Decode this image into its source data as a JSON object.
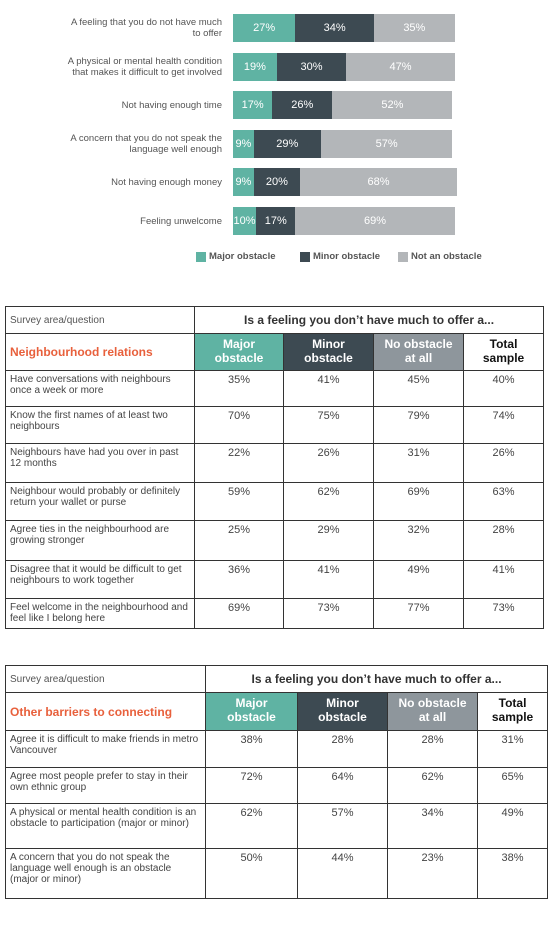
{
  "chart_data": {
    "type": "bar",
    "orientation": "horizontal",
    "stacked": true,
    "categories": [
      "A feeling that you do not have much to offer",
      "A physical or mental health condition that makes it difficult to get involved",
      "Not having enough time",
      "A concern that you do not speak the language well enough",
      "Not having enough money",
      "Feeling unwelcome"
    ],
    "series": [
      {
        "name": "Major obstacle",
        "color": "#5fb3a3",
        "values": [
          27,
          19,
          17,
          9,
          9,
          10
        ],
        "value_labels": [
          "27%",
          "19%",
          "17%",
          "9%",
          "9%",
          "10%"
        ]
      },
      {
        "name": "Minor obstacle",
        "color": "#3d4a52",
        "values": [
          34,
          30,
          26,
          29,
          20,
          17
        ],
        "value_labels": [
          "34%",
          "30%",
          "26%",
          "29%",
          "20%",
          "17%"
        ]
      },
      {
        "name": "Not an obstacle",
        "color": "#b3b6b9",
        "values": [
          35,
          47,
          52,
          57,
          68,
          69
        ],
        "value_labels": [
          "35%",
          "47%",
          "52%",
          "57%",
          "68%",
          "69%"
        ]
      }
    ]
  },
  "tables": [
    {
      "header": {
        "left": "Survey area/question",
        "span": "Is a feeling you don’t have much to offer a..."
      },
      "section": "Neighbourhood relations",
      "columns": [
        "Major obstacle",
        "Minor obstacle",
        "No obstacle at all",
        "Total sample"
      ],
      "rows": [
        [
          "Have conversations with neighbours once a week or more",
          "35%",
          "41%",
          "45%",
          "40%"
        ],
        [
          "Know the first names of at least two neighbours",
          "70%",
          "75%",
          "79%",
          "74%"
        ],
        [
          "Neighbours have had you over in past 12 months",
          "22%",
          "26%",
          "31%",
          "26%"
        ],
        [
          "Neighbour would probably or definitely return your wallet or purse",
          "59%",
          "62%",
          "69%",
          "63%"
        ],
        [
          "Agree ties in the neighbourhood are growing stronger",
          "25%",
          "29%",
          "32%",
          "28%"
        ],
        [
          "Disagree that it would be difficult to get neighbours to work together",
          "36%",
          "41%",
          "49%",
          "41%"
        ],
        [
          "Feel welcome in the neighbourhood and feel like I belong here",
          "69%",
          "73%",
          "77%",
          "73%"
        ]
      ]
    },
    {
      "header": {
        "left": "Survey area/question",
        "span": "Is a feeling you don’t have much to offer a..."
      },
      "section": "Other barriers to connecting",
      "columns": [
        "Major obstacle",
        "Minor obstacle",
        "No obstacle at all",
        "Total sample"
      ],
      "rows": [
        [
          "Agree it is difficult to make friends in metro Vancouver",
          "38%",
          "28%",
          "28%",
          "31%"
        ],
        [
          "Agree most people prefer to stay in their own ethnic group",
          "72%",
          "64%",
          "62%",
          "65%"
        ],
        [
          "A physical or mental health condition is an obstacle to participation (major or minor)",
          "62%",
          "57%",
          "34%",
          "49%"
        ],
        [
          "A concern that you do not speak the language well enough is an obstacle (major or minor)",
          "50%",
          "44%",
          "23%",
          "38%"
        ]
      ]
    }
  ]
}
